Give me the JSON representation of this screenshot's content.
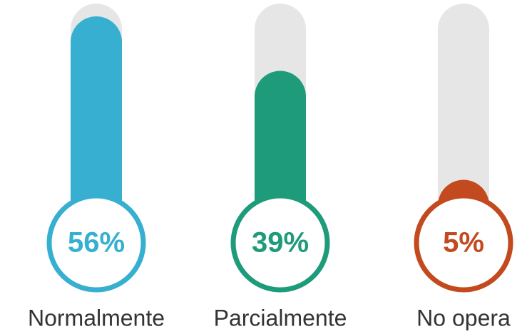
{
  "chart_data": {
    "type": "thermometer",
    "categories": [
      "Normalmente",
      "Parcialmente",
      "No opera"
    ],
    "values": [
      56,
      39,
      5
    ],
    "value_labels": [
      "56%",
      "39%",
      "5%"
    ],
    "colors": [
      "#36afd0",
      "#1e9b7a",
      "#c24a1e"
    ],
    "ylim": [
      0,
      60
    ]
  }
}
